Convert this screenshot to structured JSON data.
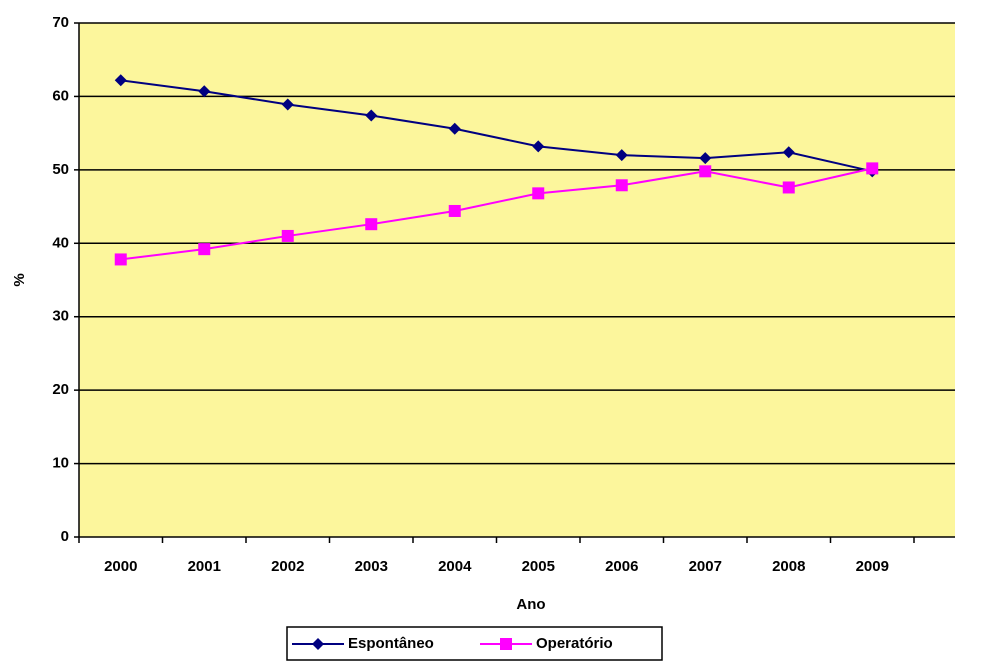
{
  "chart_data": {
    "type": "line",
    "xlabel": "Ano",
    "ylabel": "%",
    "categories": [
      "2000",
      "2001",
      "2002",
      "2003",
      "2004",
      "2005",
      "2006",
      "2007",
      "2008",
      "2009"
    ],
    "series": [
      {
        "name": "Espontâneo",
        "color": "#000080",
        "marker": "diamond",
        "values": [
          62.2,
          60.7,
          58.9,
          57.4,
          55.6,
          53.2,
          52.0,
          51.6,
          52.4,
          49.8
        ]
      },
      {
        "name": "Operatório",
        "color": "#ff00ff",
        "marker": "square",
        "values": [
          37.8,
          39.2,
          41.0,
          42.6,
          44.4,
          46.8,
          47.9,
          49.8,
          47.6,
          50.2
        ]
      }
    ],
    "ylim": [
      0,
      70
    ],
    "yticks": [
      0,
      10,
      20,
      30,
      40,
      50,
      60,
      70
    ],
    "grid": true,
    "legend": "bottom"
  }
}
